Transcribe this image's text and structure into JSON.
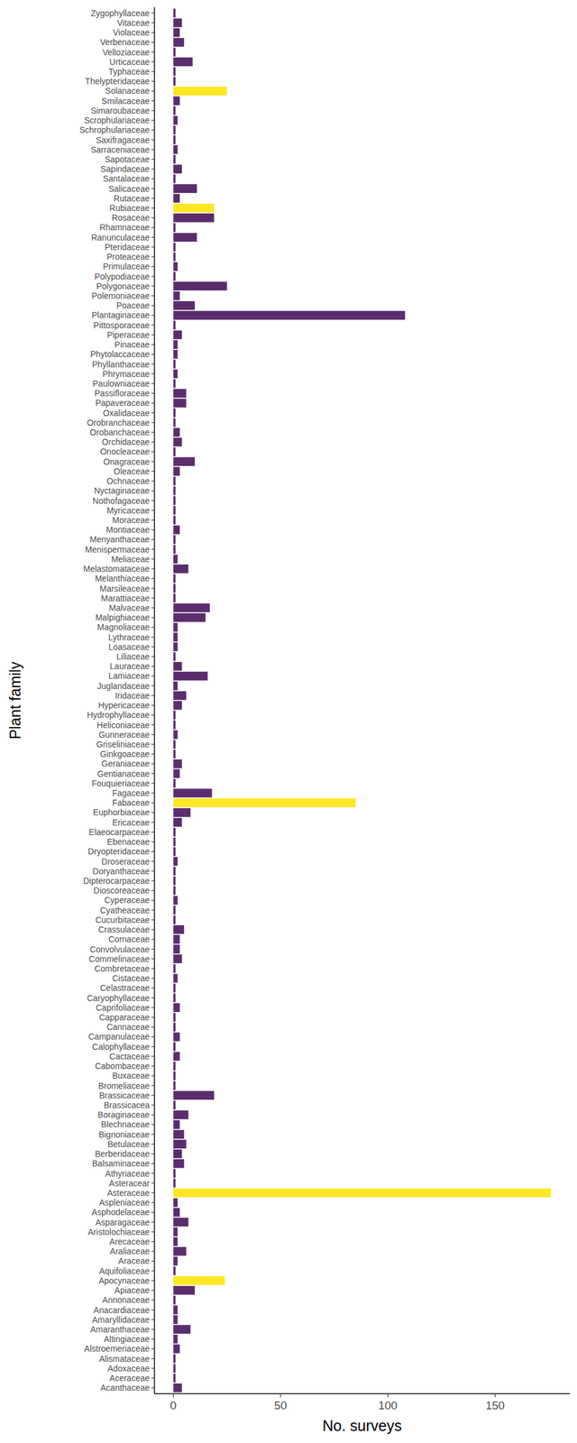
{
  "chart_data": {
    "type": "bar",
    "orientation": "horizontal",
    "xlabel": "No. surveys",
    "ylabel": "Plant family",
    "categories": [
      "Acanthaceae",
      "Aceraceae",
      "Adoxaceae",
      "Alismataceae",
      "Alstroemeriaceae",
      "Altingiaceae",
      "Amaranthaceae",
      "Amaryllidaceae",
      "Anacardiaceae",
      "Annonaceae",
      "Apiaceae",
      "Apocynaceae",
      "Aquifoliaceae",
      "Araceae",
      "Araliaceae",
      "Arecaceae",
      "Aristolochiaceae",
      "Asparagaceae",
      "Asphodelaceae",
      "Aspleniaceae",
      "Asteraceae",
      "Asteracear",
      "Athyriaceae",
      "Balsaminaceae",
      "Berberidaceae",
      "Betulaceae",
      "Bignoniaceae",
      "Blechnaceae",
      "Boraginaceae",
      "Brassicacea",
      "Brassicaceae",
      "Bromeliaceae",
      "Buxaceae",
      "Cabombaceae",
      "Cactaceae",
      "Calophyllaceae",
      "Campanulaceae",
      "Cannaceae",
      "Capparaceae",
      "Caprifoliaceae",
      "Caryophyllaceae",
      "Celastraceae",
      "Cistaceae",
      "Combretaceae",
      "Commelinaceae",
      "Convolvulaceae",
      "Cornaceae",
      "Crassulaceae",
      "Cucurbitaceae",
      "Cyatheaceae",
      "Cyperaceae",
      "Dioscoreaceae",
      "Dipterocarpaceae",
      "Doryanthaceae",
      "Droseraceae",
      "Dryopteridaceae",
      "Ebenaceae",
      "Elaeocarpaceae",
      "Ericaceae",
      "Euphorbiaceae",
      "Fabaceae",
      "Fagaceae",
      "Fouquieriaceae",
      "Gentianaceae",
      "Geraniaceae",
      "Ginkgoaceae",
      "Griseliniaceae",
      "Gunneraceae",
      "Heliconiaceae",
      "Hydrophyllaceae",
      "Hypericaceae",
      "Iridaceae",
      "Juglandaceae",
      "Lamiaceae",
      "Lauraceae",
      "Liliaceae",
      "Loasaceae",
      "Lythraceae",
      "Magnoliaceae",
      "Malpighiaceae",
      "Malvaceae",
      "Marattiaceae",
      "Marsileaceae",
      "Melanthiaceae",
      "Melastomataceae",
      "Meliaceae",
      "Menispermaceae",
      "Menyanthaceae",
      "Montiaceae",
      "Moraceae",
      "Myricaceae",
      "Nothofagaceae",
      "Nyctaginaceae",
      "Ochnaceae",
      "Oleaceae",
      "Onagraceae",
      "Onocleaceae",
      "Orchidaceae",
      "Orobanchaceae",
      "Orobranchaceae",
      "Oxalidaceae",
      "Papaveraceae",
      "Passifloraceae",
      "Paulowniaceae",
      "Phrymaceae",
      "Phyllanthaceae",
      "Phytolaccaceae",
      "Pinaceae",
      "Piperaceae",
      "Pittosporaceae",
      "Plantaginaceae",
      "Poaceae",
      "Polemoniaceae",
      "Polygonaceae",
      "Polypodiaceae",
      "Primulaceae",
      "Proteaceae",
      "Pteridaceae",
      "Ranunculaceae",
      "Rhamnaceae",
      "Rosaceae",
      "Rubiaceae",
      "Rutaceae",
      "Salicaceae",
      "Santalaceae",
      "Sapindaceae",
      "Sapotaceae",
      "Sarraceniaceae",
      "Saxifragaceae",
      "Schrophulariaceae",
      "Scrophulariaceae",
      "Simaroubaceae",
      "Smilacaceae",
      "Solanaceae",
      "Thelypteridaceae",
      "Typhaceae",
      "Urticaceae",
      "Velloziaceae",
      "Verbenaceae",
      "Violaceae",
      "Vitaceae",
      "Zygophyllaceae"
    ],
    "values": [
      4,
      1,
      1,
      1,
      3,
      2,
      8,
      2,
      2,
      1,
      10,
      24,
      1,
      2,
      6,
      2,
      2,
      7,
      3,
      2,
      176,
      1,
      1,
      5,
      4,
      6,
      5,
      3,
      7,
      1,
      19,
      1,
      1,
      1,
      3,
      1,
      3,
      1,
      1,
      3,
      1,
      1,
      2,
      1,
      4,
      3,
      3,
      5,
      1,
      1,
      2,
      1,
      1,
      1,
      2,
      1,
      1,
      1,
      4,
      8,
      85,
      18,
      1,
      3,
      4,
      1,
      1,
      2,
      1,
      1,
      4,
      6,
      2,
      16,
      4,
      1,
      2,
      2,
      2,
      15,
      17,
      1,
      1,
      1,
      7,
      2,
      1,
      1,
      3,
      1,
      1,
      1,
      1,
      1,
      3,
      10,
      1,
      4,
      3,
      1,
      1,
      6,
      6,
      1,
      2,
      1,
      2,
      2,
      4,
      1,
      108,
      10,
      3,
      25,
      1,
      2,
      1,
      1,
      11,
      1,
      19,
      19,
      3,
      11,
      1,
      4,
      1,
      2,
      1,
      1,
      2,
      1,
      3,
      25,
      1,
      1,
      9,
      1,
      5,
      3,
      4,
      1
    ],
    "colors": [
      "#5c2d6e",
      "#5c2d6e",
      "#5c2d6e",
      "#5c2d6e",
      "#5c2d6e",
      "#5c2d6e",
      "#5c2d6e",
      "#5c2d6e",
      "#5c2d6e",
      "#5c2d6e",
      "#5c2d6e",
      "#fde725",
      "#5c2d6e",
      "#5c2d6e",
      "#5c2d6e",
      "#5c2d6e",
      "#5c2d6e",
      "#5c2d6e",
      "#5c2d6e",
      "#5c2d6e",
      "#fde725",
      "#5c2d6e",
      "#5c2d6e",
      "#5c2d6e",
      "#5c2d6e",
      "#5c2d6e",
      "#5c2d6e",
      "#5c2d6e",
      "#5c2d6e",
      "#5c2d6e",
      "#5c2d6e",
      "#5c2d6e",
      "#5c2d6e",
      "#5c2d6e",
      "#5c2d6e",
      "#5c2d6e",
      "#5c2d6e",
      "#5c2d6e",
      "#5c2d6e",
      "#5c2d6e",
      "#5c2d6e",
      "#5c2d6e",
      "#5c2d6e",
      "#5c2d6e",
      "#5c2d6e",
      "#5c2d6e",
      "#5c2d6e",
      "#5c2d6e",
      "#5c2d6e",
      "#5c2d6e",
      "#5c2d6e",
      "#5c2d6e",
      "#5c2d6e",
      "#5c2d6e",
      "#5c2d6e",
      "#5c2d6e",
      "#5c2d6e",
      "#5c2d6e",
      "#5c2d6e",
      "#5c2d6e",
      "#fde725",
      "#5c2d6e",
      "#5c2d6e",
      "#5c2d6e",
      "#5c2d6e",
      "#5c2d6e",
      "#5c2d6e",
      "#5c2d6e",
      "#5c2d6e",
      "#5c2d6e",
      "#5c2d6e",
      "#5c2d6e",
      "#5c2d6e",
      "#5c2d6e",
      "#5c2d6e",
      "#5c2d6e",
      "#5c2d6e",
      "#5c2d6e",
      "#5c2d6e",
      "#5c2d6e",
      "#5c2d6e",
      "#5c2d6e",
      "#5c2d6e",
      "#5c2d6e",
      "#5c2d6e",
      "#5c2d6e",
      "#5c2d6e",
      "#5c2d6e",
      "#5c2d6e",
      "#5c2d6e",
      "#5c2d6e",
      "#5c2d6e",
      "#5c2d6e",
      "#5c2d6e",
      "#5c2d6e",
      "#5c2d6e",
      "#5c2d6e",
      "#5c2d6e",
      "#5c2d6e",
      "#5c2d6e",
      "#5c2d6e",
      "#5c2d6e",
      "#5c2d6e",
      "#5c2d6e",
      "#5c2d6e",
      "#5c2d6e",
      "#5c2d6e",
      "#5c2d6e",
      "#5c2d6e",
      "#5c2d6e",
      "#5c2d6e",
      "#5c2d6e",
      "#5c2d6e",
      "#5c2d6e",
      "#5c2d6e",
      "#5c2d6e",
      "#5c2d6e",
      "#5c2d6e",
      "#5c2d6e",
      "#5c2d6e",
      "#5c2d6e",
      "#fde725",
      "#5c2d6e",
      "#5c2d6e",
      "#5c2d6e",
      "#5c2d6e",
      "#5c2d6e",
      "#5c2d6e",
      "#5c2d6e",
      "#5c2d6e",
      "#5c2d6e",
      "#5c2d6e",
      "#5c2d6e",
      "#fde725",
      "#5c2d6e",
      "#5c2d6e",
      "#5c2d6e",
      "#5c2d6e",
      "#5c2d6e",
      "#5c2d6e",
      "#5c2d6e",
      "#5c2d6e"
    ],
    "xlim": [
      -8.8,
      184.8
    ],
    "xticks": [
      0,
      50,
      100,
      150
    ],
    "grid": false
  }
}
